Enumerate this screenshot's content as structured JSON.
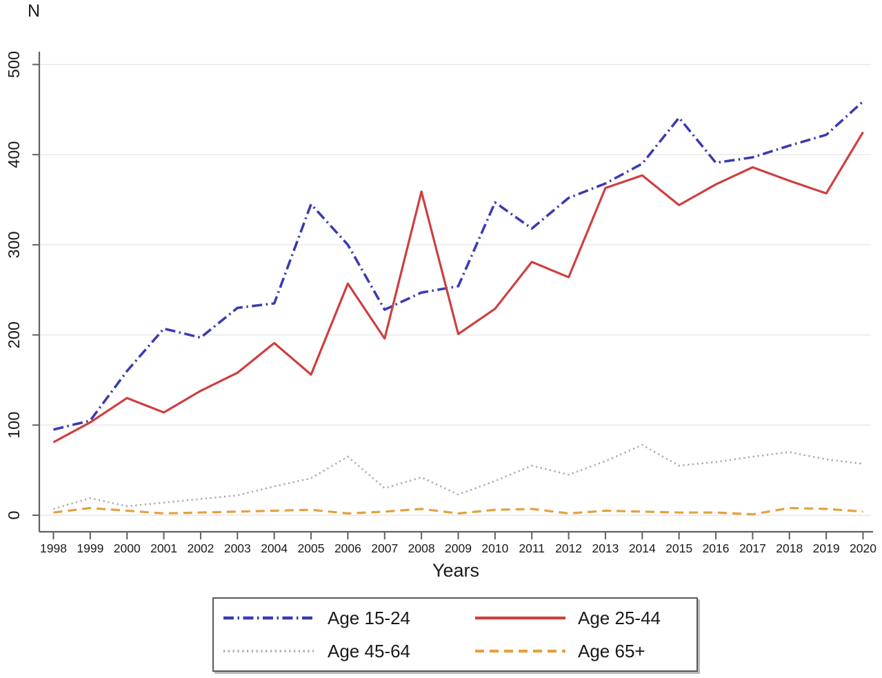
{
  "figure": {
    "top_axis_label": "N",
    "bottom_axis_label": "Years"
  },
  "chart_data": {
    "type": "line",
    "title": "",
    "xlabel": "Years",
    "ylabel": "N",
    "x": [
      1998,
      1999,
      2000,
      2001,
      2002,
      2003,
      2004,
      2005,
      2006,
      2007,
      2008,
      2009,
      2010,
      2011,
      2012,
      2013,
      2014,
      2015,
      2016,
      2017,
      2018,
      2019,
      2020
    ],
    "ylim": [
      0,
      500
    ],
    "yticks": [
      0,
      100,
      200,
      300,
      400,
      500
    ],
    "grid": true,
    "legend_position": "bottom",
    "axis_color": "#606060",
    "grid_color": "#e7e7e7",
    "series": [
      {
        "name": "Age 15-24",
        "color": "#3b3bb2",
        "style": "dash-dot",
        "values": [
          95,
          105,
          160,
          207,
          197,
          230,
          235,
          345,
          300,
          228,
          247,
          254,
          347,
          318,
          352,
          368,
          390,
          441,
          391,
          397,
          410,
          422,
          459
        ]
      },
      {
        "name": "Age 25-44",
        "color": "#cf3e3e",
        "style": "solid",
        "values": [
          81,
          103,
          130,
          114,
          138,
          158,
          191,
          156,
          257,
          196,
          359,
          201,
          229,
          281,
          264,
          363,
          377,
          344,
          367,
          386,
          371,
          357,
          425
        ]
      },
      {
        "name": "Age 45-64",
        "color": "#a8a8b0",
        "style": "dotted",
        "values": [
          7,
          19,
          10,
          14,
          18,
          22,
          32,
          41,
          65,
          30,
          42,
          23,
          38,
          55,
          45,
          60,
          78,
          55,
          59,
          65,
          70,
          62,
          57
        ]
      },
      {
        "name": "Age 65+",
        "color": "#e5a03c",
        "style": "dashed",
        "values": [
          3,
          8,
          5,
          2,
          3,
          4,
          5,
          6,
          2,
          4,
          7,
          2,
          6,
          7,
          2,
          5,
          4,
          3,
          3,
          1,
          8,
          7,
          4
        ]
      }
    ]
  }
}
